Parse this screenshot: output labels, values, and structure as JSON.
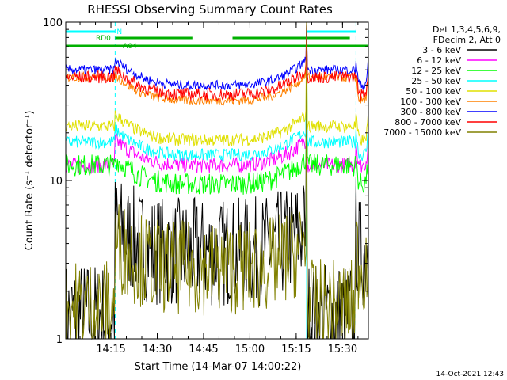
{
  "chart_data": {
    "type": "line",
    "title": "RHESSI Observing Summary Count Rates",
    "xlabel": "Start Time (14-Mar-07 14:00:22)",
    "ylabel": "Count Rate (s⁻¹ detector⁻¹)",
    "y_scale": "log",
    "ylim": [
      1,
      100
    ],
    "xlim_minutes": [
      0,
      98
    ],
    "x_ticks": [
      "14:15",
      "14:30",
      "14:45",
      "15:00",
      "15:15",
      "15:30"
    ],
    "y_ticks": [
      "1",
      "10",
      "100"
    ],
    "legend_header": [
      "Det 1,3,4,5,6,9,",
      "FDecim 2, Att 0"
    ],
    "legend_position": "top-right",
    "footer_date": "14-Oct-2021 12:43",
    "flags": [
      {
        "label": "RD0",
        "color": "#00b000"
      },
      {
        "label": "N",
        "color": "#00ffff"
      },
      {
        "label": "A04",
        "color": "#00b000"
      }
    ],
    "night_boundaries_minutes": [
      0,
      16,
      78,
      94
    ],
    "saa_boundaries_minutes": [
      0,
      16,
      78,
      94
    ],
    "series": [
      {
        "name": "3 - 6 keV",
        "color": "#000000",
        "day_level": 3.5,
        "night_level": 1.4,
        "noise": 0.35
      },
      {
        "name": "6 - 12 keV",
        "color": "#ff00ff",
        "day_level": 12.5,
        "night_level": 12.5,
        "noise": 0.05
      },
      {
        "name": "12 - 25 keV",
        "color": "#00ff00",
        "day_level": 9.5,
        "night_level": 12.5,
        "noise": 0.07
      },
      {
        "name": "25 - 50 keV",
        "color": "#00ffff",
        "day_level": 14.5,
        "night_level": 17.5,
        "noise": 0.04
      },
      {
        "name": "50 - 100 keV",
        "color": "#e0e000",
        "day_level": 18,
        "night_level": 22,
        "noise": 0.04
      },
      {
        "name": "100 - 300 keV",
        "color": "#ff8000",
        "day_level": 32,
        "night_level": 45,
        "noise": 0.03
      },
      {
        "name": "300 - 800 keV",
        "color": "#0000ff",
        "day_level": 40,
        "night_level": 50,
        "noise": 0.03
      },
      {
        "name": "800 - 7000 keV",
        "color": "#ff0000",
        "day_level": 35,
        "night_level": 45,
        "noise": 0.04
      },
      {
        "name": "7000 - 15000 keV",
        "color": "#808000",
        "day_level": 2.8,
        "night_level": 1.6,
        "noise": 0.3
      }
    ]
  }
}
